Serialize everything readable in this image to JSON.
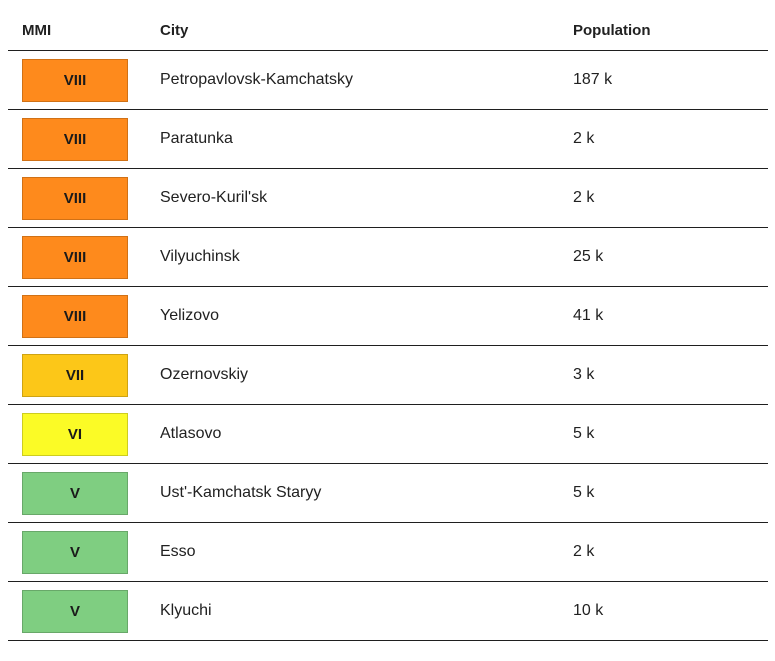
{
  "headers": {
    "mmi": "MMI",
    "city": "City",
    "population": "Population"
  },
  "colors": {
    "VIII": "#fe8a1c",
    "VII": "#fcc718",
    "VI": "#fbfb26",
    "V": "#7fce81"
  },
  "rows": [
    {
      "mmi": "VIII",
      "city": "Petropavlovsk-Kamchatsky",
      "population": "187 k"
    },
    {
      "mmi": "VIII",
      "city": "Paratunka",
      "population": "2 k"
    },
    {
      "mmi": "VIII",
      "city": "Severo-Kuril'sk",
      "population": "2 k"
    },
    {
      "mmi": "VIII",
      "city": "Vilyuchinsk",
      "population": "25 k"
    },
    {
      "mmi": "VIII",
      "city": "Yelizovo",
      "population": "41 k"
    },
    {
      "mmi": "VII",
      "city": "Ozernovskiy",
      "population": "3 k"
    },
    {
      "mmi": "VI",
      "city": "Atlasovo",
      "population": "5 k"
    },
    {
      "mmi": "V",
      "city": "Ust'-Kamchatsk Staryy",
      "population": "5 k"
    },
    {
      "mmi": "V",
      "city": "Esso",
      "population": "2 k"
    },
    {
      "mmi": "V",
      "city": "Klyuchi",
      "population": "10 k"
    }
  ]
}
